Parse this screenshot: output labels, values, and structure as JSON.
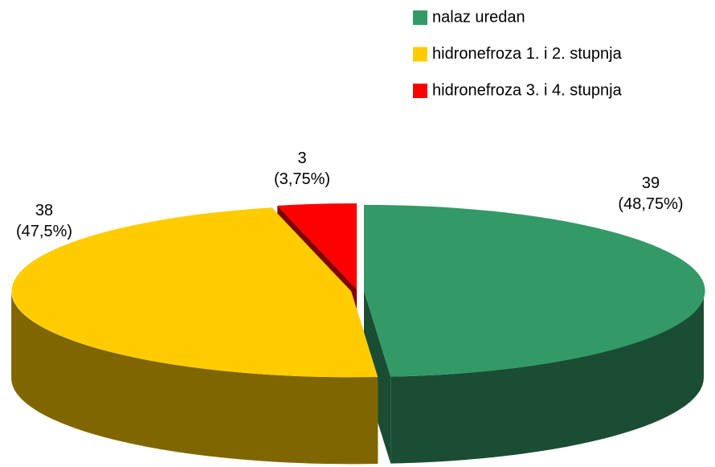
{
  "chart_data": {
    "type": "pie3d",
    "categories": [
      "nalaz uredan",
      "hidronefroza 1. i 2. stupnja",
      "hidronefroza 3. i 4. stupnja"
    ],
    "values": [
      39,
      38,
      3
    ],
    "value_labels": [
      "39\n(48,75%)",
      "38\n(47,5%)",
      "3\n(3,75%)"
    ],
    "colors": [
      "#339966",
      "#ffcc00",
      "#ff0000"
    ],
    "legend": "top-right"
  }
}
